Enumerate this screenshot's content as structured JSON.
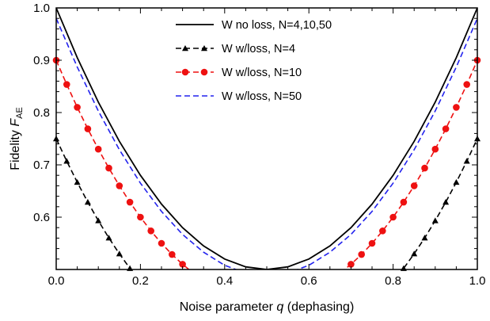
{
  "chart_data": {
    "type": "line",
    "xlabel": "Noise parameter q (dephasing)",
    "xlabel_parts": {
      "pre": "Noise parameter ",
      "var": "q",
      "post": " (dephasing)"
    },
    "ylabel": "Fidelity F_AE",
    "ylabel_parts": {
      "pre": "Fidelity ",
      "var": "F",
      "sub": "AE"
    },
    "xlim": [
      0,
      1
    ],
    "ylim": [
      0.5,
      1.0
    ],
    "x_ticks": [
      0.0,
      0.2,
      0.4,
      0.6,
      0.8,
      1.0
    ],
    "x_tick_labels": [
      "0.0",
      "0.2",
      "0.4",
      "0.6",
      "0.8",
      "1.0"
    ],
    "y_ticks": [
      0.6,
      0.7,
      0.8,
      0.9,
      1.0
    ],
    "y_tick_labels": [
      "0.6",
      "0.7",
      "0.8",
      "0.9",
      "1.0"
    ],
    "grid": false,
    "legend_position": "top-center",
    "series": [
      {
        "name": "W no loss, N=4,10,50",
        "color": "#000000",
        "dash": "solid",
        "marker": "none",
        "x": [
          0,
          0.05,
          0.1,
          0.15,
          0.2,
          0.25,
          0.3,
          0.35,
          0.4,
          0.45,
          0.5,
          0.55,
          0.6,
          0.65,
          0.7,
          0.75,
          0.8,
          0.85,
          0.9,
          0.95,
          1.0
        ],
        "y": [
          1.0,
          0.905,
          0.82,
          0.745,
          0.68,
          0.625,
          0.58,
          0.545,
          0.52,
          0.505,
          0.5,
          0.505,
          0.52,
          0.545,
          0.58,
          0.625,
          0.68,
          0.745,
          0.82,
          0.905,
          1.0
        ]
      },
      {
        "name": "W w/loss, N=4",
        "color": "#000000",
        "dash": "dashed",
        "marker": "triangle",
        "x": [
          0,
          0.025,
          0.05,
          0.075,
          0.1,
          0.125,
          0.15,
          0.175,
          0.2,
          0.8,
          0.825,
          0.85,
          0.875,
          0.9,
          0.925,
          0.95,
          0.975,
          1.0
        ],
        "y": [
          0.75,
          0.7071,
          0.6667,
          0.6288,
          0.5933,
          0.5604,
          0.53,
          0.5021,
          0.4767,
          0.4767,
          0.5021,
          0.53,
          0.5604,
          0.5933,
          0.6288,
          0.6667,
          0.7071,
          0.75
        ]
      },
      {
        "name": "W w/loss, N=10",
        "color": "#ee1111",
        "dash": "dashed",
        "marker": "circle",
        "x": [
          0,
          0.025,
          0.05,
          0.075,
          0.1,
          0.125,
          0.15,
          0.175,
          0.2,
          0.225,
          0.25,
          0.275,
          0.3,
          0.325,
          0.675,
          0.7,
          0.725,
          0.75,
          0.775,
          0.8,
          0.825,
          0.85,
          0.875,
          0.9,
          0.925,
          0.95,
          0.975,
          1.0
        ],
        "y": [
          0.9,
          0.8537,
          0.81,
          0.7688,
          0.73,
          0.6938,
          0.66,
          0.6287,
          0.6,
          0.5737,
          0.55,
          0.5287,
          0.51,
          0.4937,
          0.4937,
          0.51,
          0.5287,
          0.55,
          0.5737,
          0.6,
          0.6287,
          0.66,
          0.6938,
          0.73,
          0.7688,
          0.81,
          0.8537,
          0.9
        ]
      },
      {
        "name": "W w/loss, N=50",
        "color": "#2222ee",
        "dash": "dashed",
        "marker": "none",
        "x": [
          0,
          0.05,
          0.1,
          0.15,
          0.2,
          0.25,
          0.3,
          0.35,
          0.4,
          0.45,
          0.5,
          0.55,
          0.6,
          0.65,
          0.7,
          0.75,
          0.8,
          0.85,
          0.9,
          0.95,
          1.0
        ],
        "y": [
          0.98,
          0.887,
          0.803,
          0.729,
          0.665,
          0.611,
          0.567,
          0.533,
          0.508,
          0.493,
          0.488,
          0.493,
          0.508,
          0.533,
          0.567,
          0.611,
          0.665,
          0.729,
          0.803,
          0.887,
          0.98
        ]
      }
    ]
  }
}
